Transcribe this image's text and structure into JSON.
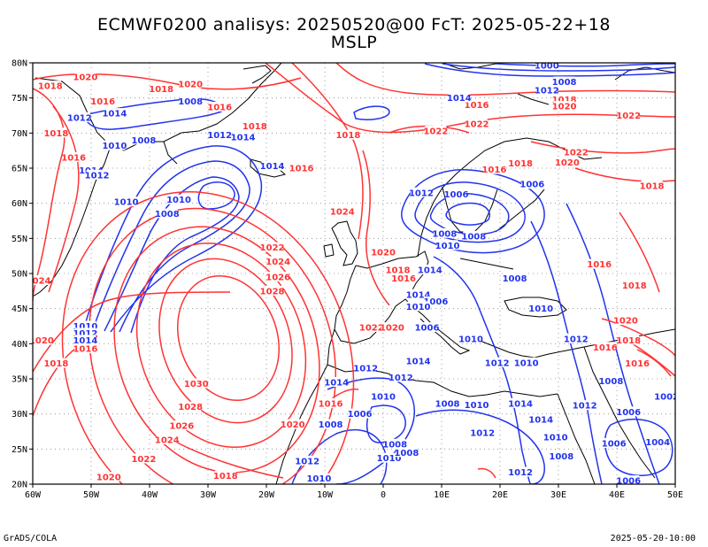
{
  "title_line1": "ECMWF0200 analisys: 20250520@00 FcT: 2025-05-22+18",
  "title_line2": "MSLP",
  "footer_left": "GrADS/COLA",
  "footer_right": "2025-05-20-10:00",
  "lat_labels": [
    "80N",
    "75N",
    "70N",
    "65N",
    "60N",
    "55N",
    "50N",
    "45N",
    "40N",
    "35N",
    "30N",
    "25N",
    "20N"
  ],
  "lon_labels": [
    "60W",
    "50W",
    "40W",
    "30W",
    "20W",
    "10W",
    "0",
    "10E",
    "20E",
    "30E",
    "40E",
    "50E"
  ],
  "colors": {
    "high": "#ff3333",
    "low": "#2233ee",
    "coast": "#000000",
    "grid": "#888888"
  },
  "contour_labels": [
    {
      "t": "1020",
      "lon": -51,
      "lat": 78,
      "c": "high"
    },
    {
      "t": "1018",
      "lon": -57,
      "lat": 76.7,
      "c": "high"
    },
    {
      "t": "1018",
      "lon": -38,
      "lat": 76.3,
      "c": "high"
    },
    {
      "t": "1020",
      "lon": -33,
      "lat": 77,
      "c": "high"
    },
    {
      "t": "1016",
      "lon": -48,
      "lat": 74.5,
      "c": "high"
    },
    {
      "t": "1014",
      "lon": -46,
      "lat": 72.8,
      "c": "low"
    },
    {
      "t": "1012",
      "lon": -52,
      "lat": 72.2,
      "c": "low"
    },
    {
      "t": "1008",
      "lon": -33,
      "lat": 74.5,
      "c": "low"
    },
    {
      "t": "1016",
      "lon": -28,
      "lat": 73.7,
      "c": "high"
    },
    {
      "t": "1018",
      "lon": -56,
      "lat": 70,
      "c": "high"
    },
    {
      "t": "1008",
      "lon": -41,
      "lat": 69,
      "c": "low"
    },
    {
      "t": "1010",
      "lon": -46,
      "lat": 68.2,
      "c": "low"
    },
    {
      "t": "1016",
      "lon": -53,
      "lat": 66.5,
      "c": "high"
    },
    {
      "t": "1014",
      "lon": -50,
      "lat": 64.7,
      "c": "low"
    },
    {
      "t": "1012",
      "lon": -49,
      "lat": 64,
      "c": "low"
    },
    {
      "t": "1010",
      "lon": -44,
      "lat": 60.2,
      "c": "low"
    },
    {
      "t": "1010",
      "lon": -35,
      "lat": 60.5,
      "c": "low"
    },
    {
      "t": "1008",
      "lon": -37,
      "lat": 58.5,
      "c": "low"
    },
    {
      "t": "1012",
      "lon": -28,
      "lat": 69.7,
      "c": "low"
    },
    {
      "t": "1014",
      "lon": -24,
      "lat": 69.4,
      "c": "low"
    },
    {
      "t": "1018",
      "lon": -22,
      "lat": 71,
      "c": "high"
    },
    {
      "t": "1014",
      "lon": -19,
      "lat": 65.3,
      "c": "low"
    },
    {
      "t": "1016",
      "lon": -14,
      "lat": 65,
      "c": "high"
    },
    {
      "t": "1018",
      "lon": -6,
      "lat": 69.7,
      "c": "high"
    },
    {
      "t": "1022",
      "lon": 9,
      "lat": 70.3,
      "c": "high"
    },
    {
      "t": "1022",
      "lon": 16,
      "lat": 71.3,
      "c": "high"
    },
    {
      "t": "1016",
      "lon": 16,
      "lat": 74,
      "c": "high"
    },
    {
      "t": "1014",
      "lon": 13,
      "lat": 75,
      "c": "low"
    },
    {
      "t": "1012",
      "lon": 28,
      "lat": 76.1,
      "c": "low"
    },
    {
      "t": "1008",
      "lon": 31,
      "lat": 77.3,
      "c": "low"
    },
    {
      "t": "1000",
      "lon": 28,
      "lat": 79.6,
      "c": "low"
    },
    {
      "t": "1018",
      "lon": 31,
      "lat": 74.8,
      "c": "high"
    },
    {
      "t": "1020",
      "lon": 31,
      "lat": 73.8,
      "c": "high"
    },
    {
      "t": "1022",
      "lon": 42,
      "lat": 72.5,
      "c": "high"
    },
    {
      "t": "1022",
      "lon": 33,
      "lat": 67.3,
      "c": "high"
    },
    {
      "t": "1020",
      "lon": 31.5,
      "lat": 65.8,
      "c": "high"
    },
    {
      "t": "1018",
      "lon": 23.5,
      "lat": 65.7,
      "c": "high"
    },
    {
      "t": "1016",
      "lon": 19,
      "lat": 64.8,
      "c": "high"
    },
    {
      "t": "1018",
      "lon": 46,
      "lat": 62.5,
      "c": "high"
    },
    {
      "t": "1012",
      "lon": 6.5,
      "lat": 61.5,
      "c": "low"
    },
    {
      "t": "1006",
      "lon": 12.5,
      "lat": 61.3,
      "c": "low"
    },
    {
      "t": "1006",
      "lon": 25.5,
      "lat": 62.7,
      "c": "low"
    },
    {
      "t": "1008",
      "lon": 10.5,
      "lat": 55.7,
      "c": "low"
    },
    {
      "t": "1008",
      "lon": 15.5,
      "lat": 55.3,
      "c": "low"
    },
    {
      "t": "1010",
      "lon": 11,
      "lat": 54,
      "c": "low"
    },
    {
      "t": "1014",
      "lon": 8,
      "lat": 50.5,
      "c": "low"
    },
    {
      "t": "1008",
      "lon": 22.5,
      "lat": 49.3,
      "c": "low"
    },
    {
      "t": "1016",
      "lon": 37,
      "lat": 51.3,
      "c": "high"
    },
    {
      "t": "1018",
      "lon": 43,
      "lat": 48.3,
      "c": "high"
    },
    {
      "t": "1010",
      "lon": 27,
      "lat": 45,
      "c": "low"
    },
    {
      "t": "1024",
      "lon": -7,
      "lat": 58.8,
      "c": "high"
    },
    {
      "t": "1022",
      "lon": -19,
      "lat": 53.7,
      "c": "high"
    },
    {
      "t": "1024",
      "lon": -18,
      "lat": 51.7,
      "c": "high"
    },
    {
      "t": "1026",
      "lon": -18,
      "lat": 49.5,
      "c": "high"
    },
    {
      "t": "1028",
      "lon": -19,
      "lat": 47.5,
      "c": "high"
    },
    {
      "t": "1020",
      "lon": 0,
      "lat": 53,
      "c": "high"
    },
    {
      "t": "1018",
      "lon": 2.5,
      "lat": 50.5,
      "c": "high"
    },
    {
      "t": "1016",
      "lon": 3.5,
      "lat": 49.3,
      "c": "high"
    },
    {
      "t": "1014",
      "lon": 6,
      "lat": 47,
      "c": "low"
    },
    {
      "t": "1006",
      "lon": 9,
      "lat": 46,
      "c": "low"
    },
    {
      "t": "1010",
      "lon": 6,
      "lat": 45.3,
      "c": "low"
    },
    {
      "t": "1006",
      "lon": 7.5,
      "lat": 42.3,
      "c": "low"
    },
    {
      "t": "1022",
      "lon": -2,
      "lat": 42.3,
      "c": "high"
    },
    {
      "t": "1020",
      "lon": 1.5,
      "lat": 42.3,
      "c": "high"
    },
    {
      "t": "1010",
      "lon": 15,
      "lat": 40.7,
      "c": "low"
    },
    {
      "t": "1012",
      "lon": 19.5,
      "lat": 37.3,
      "c": "low"
    },
    {
      "t": "1010",
      "lon": 24.5,
      "lat": 37.3,
      "c": "low"
    },
    {
      "t": "1012",
      "lon": 33,
      "lat": 40.7,
      "c": "low"
    },
    {
      "t": "1016",
      "lon": 38,
      "lat": 39.5,
      "c": "high"
    },
    {
      "t": "1020",
      "lon": 41.5,
      "lat": 43.3,
      "c": "high"
    },
    {
      "t": "1018",
      "lon": 42,
      "lat": 40.5,
      "c": "high"
    },
    {
      "t": "1016",
      "lon": 43.5,
      "lat": 37.2,
      "c": "high"
    },
    {
      "t": "1008",
      "lon": 39,
      "lat": 34.7,
      "c": "low"
    },
    {
      "t": "1012",
      "lon": -3,
      "lat": 36.5,
      "c": "low"
    },
    {
      "t": "1014",
      "lon": 6,
      "lat": 37.5,
      "c": "low"
    },
    {
      "t": "1014",
      "lon": -8,
      "lat": 34.5,
      "c": "low"
    },
    {
      "t": "1012",
      "lon": 3,
      "lat": 35.2,
      "c": "low"
    },
    {
      "t": "1010",
      "lon": 0,
      "lat": 32.5,
      "c": "low"
    },
    {
      "t": "1008",
      "lon": 11,
      "lat": 31.5,
      "c": "low"
    },
    {
      "t": "1010",
      "lon": 16,
      "lat": 31.3,
      "c": "low"
    },
    {
      "t": "1014",
      "lon": 23.5,
      "lat": 31.5,
      "c": "low"
    },
    {
      "t": "1014",
      "lon": 27,
      "lat": 29.2,
      "c": "low"
    },
    {
      "t": "1012",
      "lon": 34.5,
      "lat": 31.2,
      "c": "low"
    },
    {
      "t": "1006",
      "lon": 42,
      "lat": 30.3,
      "c": "low"
    },
    {
      "t": "1002",
      "lon": 48.5,
      "lat": 32.5,
      "c": "low"
    },
    {
      "t": "1012",
      "lon": 17,
      "lat": 27.3,
      "c": "low"
    },
    {
      "t": "1010",
      "lon": 29.5,
      "lat": 26.7,
      "c": "low"
    },
    {
      "t": "1008",
      "lon": 30.5,
      "lat": 24,
      "c": "low"
    },
    {
      "t": "1006",
      "lon": 39.5,
      "lat": 25.8,
      "c": "low"
    },
    {
      "t": "1004",
      "lon": 47,
      "lat": 26,
      "c": "low"
    },
    {
      "t": "1008",
      "lon": 2,
      "lat": 25.7,
      "c": "low"
    },
    {
      "t": "1010",
      "lon": 1,
      "lat": 23.7,
      "c": "low"
    },
    {
      "t": "1008",
      "lon": 4,
      "lat": 24.5,
      "c": "low"
    },
    {
      "t": "1012",
      "lon": 23.5,
      "lat": 21.7,
      "c": "low"
    },
    {
      "t": "1006",
      "lon": 42,
      "lat": 20.5,
      "c": "low"
    },
    {
      "t": "1016",
      "lon": -9,
      "lat": 31.5,
      "c": "high"
    },
    {
      "t": "1006",
      "lon": -4,
      "lat": 30,
      "c": "low"
    },
    {
      "t": "1008",
      "lon": -9,
      "lat": 28.5,
      "c": "low"
    },
    {
      "t": "1012",
      "lon": -13,
      "lat": 23.3,
      "c": "low"
    },
    {
      "t": "1010",
      "lon": -11,
      "lat": 20.8,
      "c": "low"
    },
    {
      "t": "1030",
      "lon": -32,
      "lat": 34.3,
      "c": "high"
    },
    {
      "t": "1028",
      "lon": -33,
      "lat": 31,
      "c": "high"
    },
    {
      "t": "1026",
      "lon": -34.5,
      "lat": 28.3,
      "c": "high"
    },
    {
      "t": "1024",
      "lon": -37,
      "lat": 26.3,
      "c": "high"
    },
    {
      "t": "1022",
      "lon": -41,
      "lat": 23.6,
      "c": "high"
    },
    {
      "t": "1020",
      "lon": -47,
      "lat": 21,
      "c": "high"
    },
    {
      "t": "1018",
      "lon": -27,
      "lat": 21.2,
      "c": "high"
    },
    {
      "t": "1020",
      "lon": -15.5,
      "lat": 28.5,
      "c": "high"
    },
    {
      "t": "1010",
      "lon": -51,
      "lat": 42.5,
      "c": "low"
    },
    {
      "t": "1012",
      "lon": -51,
      "lat": 41.5,
      "c": "low"
    },
    {
      "t": "1014",
      "lon": -51,
      "lat": 40.5,
      "c": "low"
    },
    {
      "t": "1016",
      "lon": -51,
      "lat": 39.3,
      "c": "high"
    },
    {
      "t": "1018",
      "lon": -56,
      "lat": 37.2,
      "c": "high"
    },
    {
      "t": "1020",
      "lon": -58.5,
      "lat": 40.5,
      "c": "high"
    },
    {
      "t": "1024",
      "lon": -59,
      "lat": 49,
      "c": "high"
    }
  ]
}
